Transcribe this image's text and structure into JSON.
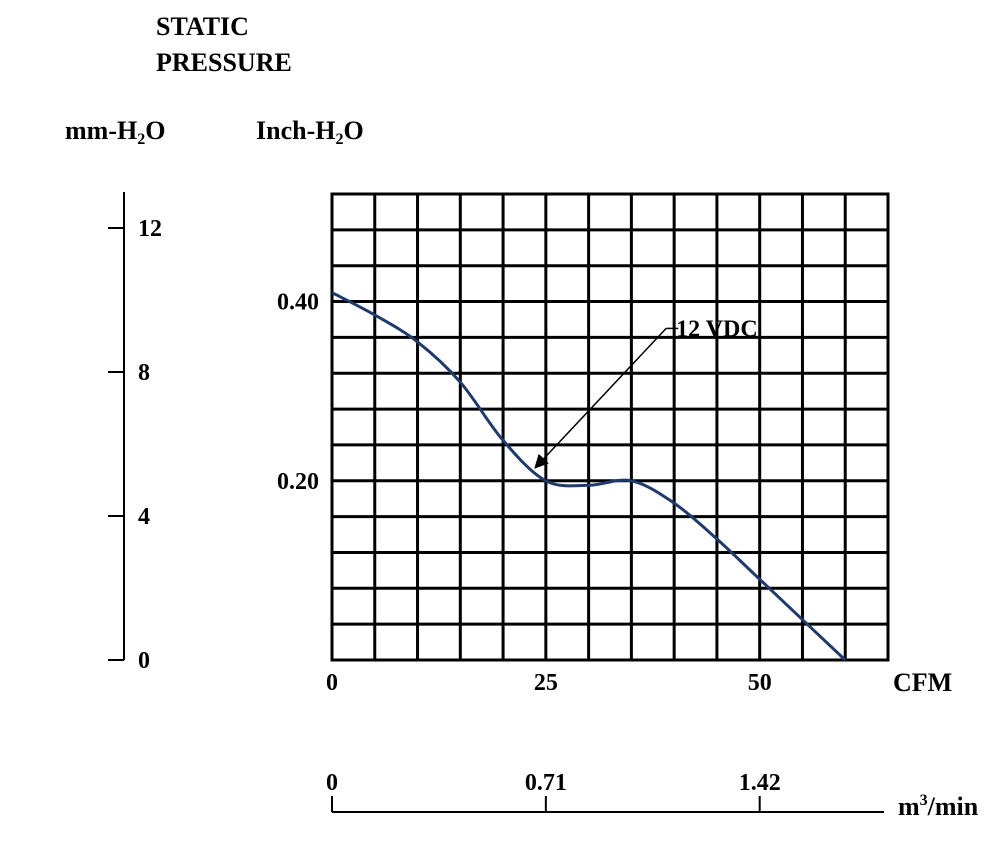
{
  "title_line1": "STATIC",
  "title_line2": "PRESSURE",
  "units": {
    "mm_main": "mm-H",
    "mm_sub": "2",
    "mm_tail": "O",
    "inch_main": "Inch-H",
    "inch_sub": "2",
    "inch_tail": "O",
    "cms_main": "m",
    "cms_sup": "3",
    "cms_tail": "/min"
  },
  "chart_data": {
    "type": "line",
    "x_unit": "CFM",
    "x_ticks": [
      0,
      25,
      50
    ],
    "x_tick_labels": [
      "0",
      "25",
      "50"
    ],
    "xlim": [
      0,
      65
    ],
    "y_unit": "Inch-H2O",
    "y_ticks": [
      0.2,
      0.4
    ],
    "y_tick_labels": [
      "0.20",
      "0.40"
    ],
    "ylim": [
      0,
      0.52
    ],
    "grid": true,
    "mm_axis": {
      "unit": "mm-H2O",
      "ticks": [
        0,
        4,
        8,
        12
      ],
      "tick_labels": [
        "0",
        "4",
        "8",
        "12"
      ]
    },
    "cms_axis": {
      "unit": "m3/min",
      "ticks": [
        0,
        0.71,
        1.42
      ],
      "tick_labels": [
        "0",
        "0.71",
        "1.42"
      ]
    },
    "series": [
      {
        "name": "12 VDC",
        "color": "#1f3a6b",
        "x": [
          0,
          5,
          10,
          15,
          20,
          25,
          30,
          35,
          40,
          45,
          50,
          55,
          60
        ],
        "y": [
          0.41,
          0.385,
          0.355,
          0.31,
          0.245,
          0.2,
          0.195,
          0.2,
          0.175,
          0.135,
          0.09,
          0.045,
          0
        ]
      }
    ],
    "annotation": {
      "text": "12 VDC",
      "arrow_to": [
        23.8,
        0.215
      ],
      "label_at": [
        40,
        0.37
      ]
    }
  }
}
